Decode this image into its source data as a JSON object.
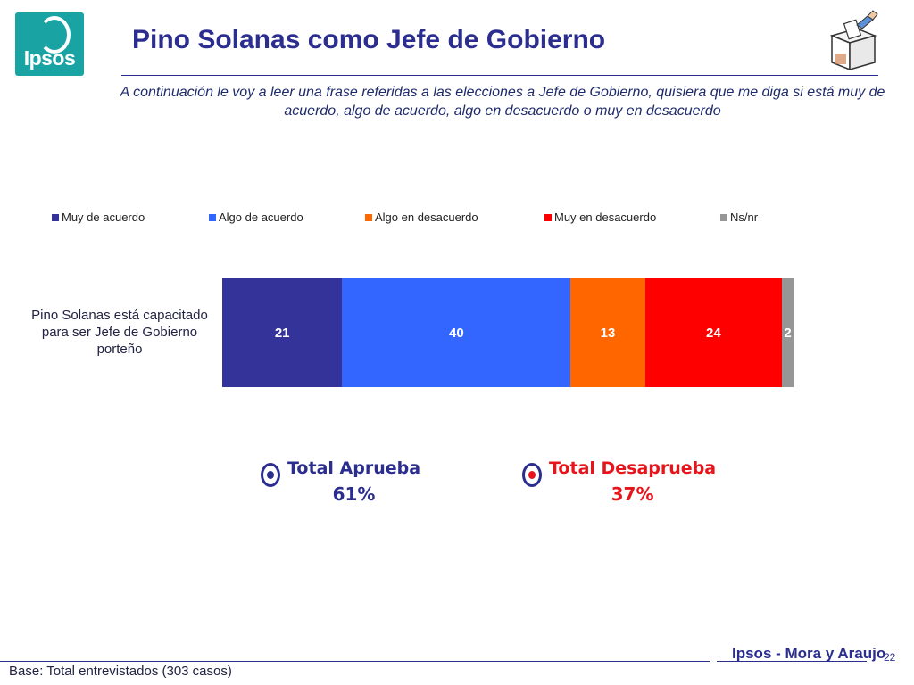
{
  "header": {
    "logo_text": "Ipsos",
    "title": "Pino Solanas como Jefe de Gobierno",
    "subtitle": "A continuación le voy a leer una frase referidas a las elecciones a Jefe de Gobierno, quisiera que me diga si está muy de acuerdo, algo de acuerdo, algo en desacuerdo o muy en desacuerdo",
    "ballot_icon": "ballot-box-icon"
  },
  "chart_data": {
    "type": "bar",
    "orientation": "horizontal",
    "stacked": true,
    "categories": [
      "Pino Solanas está capacitado para ser Jefe de Gobierno porteño"
    ],
    "series": [
      {
        "name": "Muy de acuerdo",
        "values": [
          21
        ],
        "color": "#333399"
      },
      {
        "name": "Algo de acuerdo",
        "values": [
          40
        ],
        "color": "#3366ff"
      },
      {
        "name": "Algo en desacuerdo",
        "values": [
          13
        ],
        "color": "#ff6600"
      },
      {
        "name": "Muy en desacuerdo",
        "values": [
          24
        ],
        "color": "#ff0000"
      },
      {
        "name": "Ns/nr",
        "values": [
          2
        ],
        "color": "#969696"
      }
    ],
    "xlim": [
      0,
      100
    ],
    "legend_position": "top",
    "grid": false
  },
  "totals": [
    {
      "label": "Total Aprueba",
      "value": "61%",
      "color": "#2b2e8f",
      "dot_color": "#2b2e8f"
    },
    {
      "label": "Total Desaprueba",
      "value": "37%",
      "color": "#e8141b",
      "dot_color": "#e8141b"
    }
  ],
  "footer": {
    "base": "Base: Total entrevistados (303 casos)",
    "brand": "Ipsos - Mora y Araujo",
    "page": "22"
  }
}
